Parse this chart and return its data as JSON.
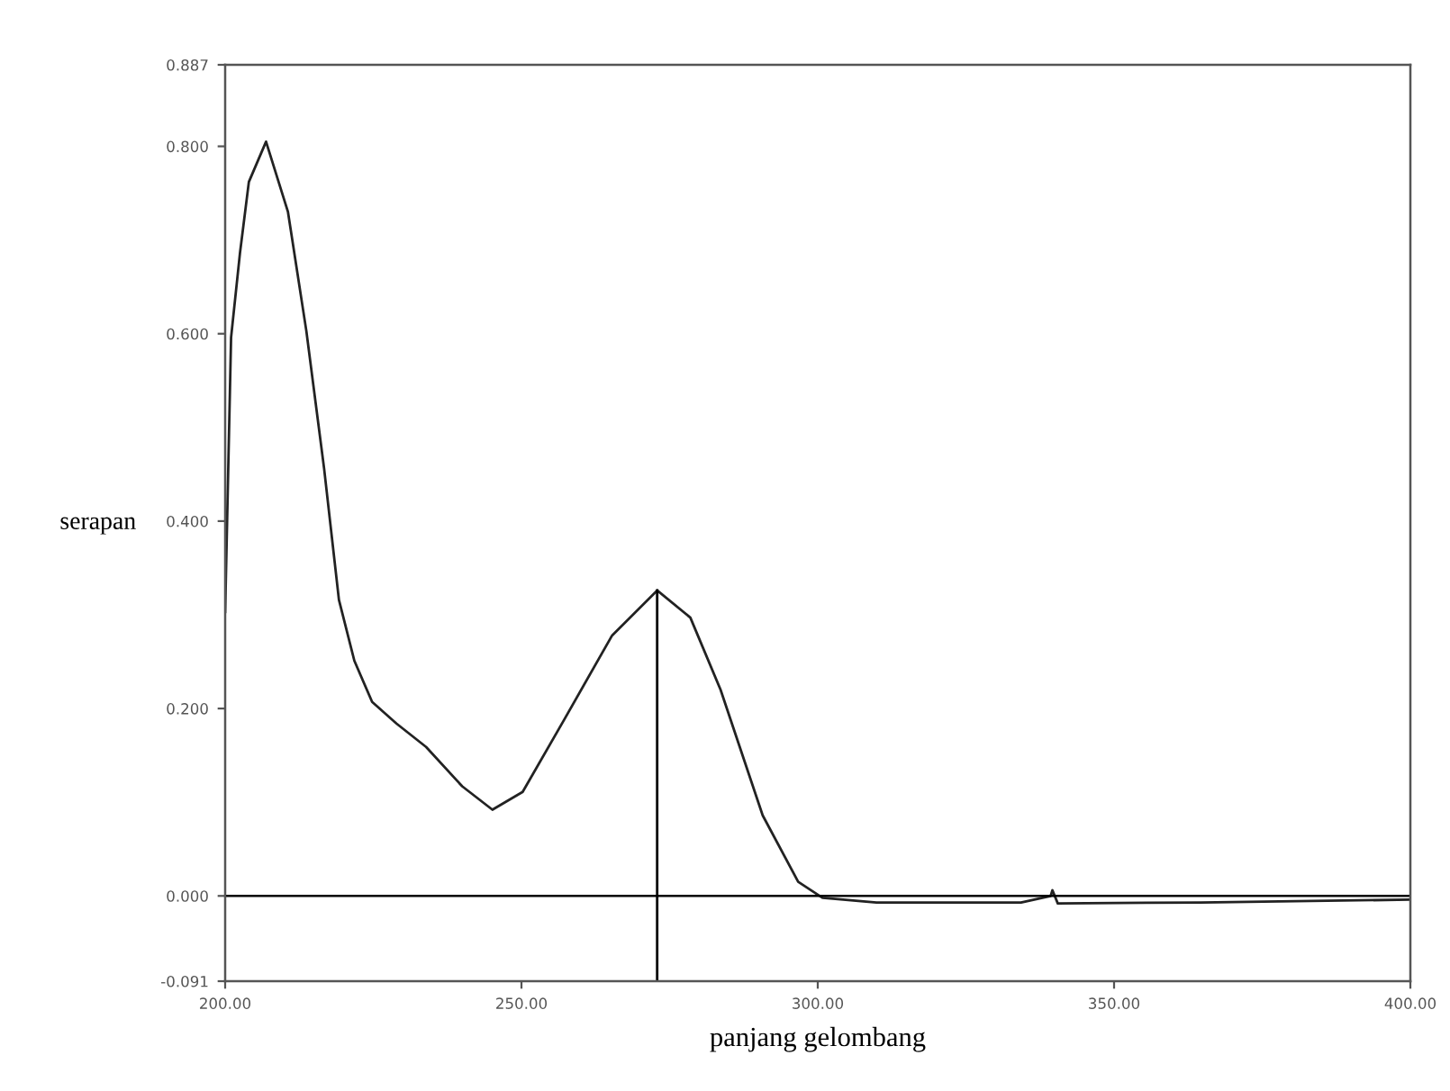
{
  "chart_data": {
    "type": "line",
    "xlabel": "panjang gelombang",
    "ylabel": "serapan",
    "xlim": [
      200,
      400
    ],
    "ylim": [
      -0.091,
      0.887
    ],
    "xticks": [
      {
        "value": 200,
        "label": "200.00"
      },
      {
        "value": 250,
        "label": "250.00"
      },
      {
        "value": 300,
        "label": "300.00"
      },
      {
        "value": 350,
        "label": "350.00"
      },
      {
        "value": 400,
        "label": "400.00"
      }
    ],
    "yticks": [
      {
        "value": -0.091,
        "label": "-0.091"
      },
      {
        "value": 0,
        "label": "0.000"
      },
      {
        "value": 0.2,
        "label": "0.200"
      },
      {
        "value": 0.4,
        "label": "0.400"
      },
      {
        "value": 0.6,
        "label": "0.600"
      },
      {
        "value": 0.8,
        "label": "0.800"
      },
      {
        "value": 0.887,
        "label": "0.887"
      }
    ],
    "grid": false,
    "legend": false,
    "marker": "none",
    "line_style": "solid",
    "ref_lines": [
      {
        "axis": "y",
        "value": 0,
        "color": "#000000"
      }
    ],
    "series": [
      {
        "color": "#222222",
        "x": [
          200.0,
          201.0,
          202.5,
          204.0,
          206.9,
          210.6,
          213.7,
          216.7,
          219.2,
          221.8,
          224.8,
          228.9,
          233.9,
          240.0,
          245.1,
          250.2,
          257.2,
          265.3,
          272.9,
          278.5,
          283.6,
          290.7,
          296.7,
          300.8,
          309.9,
          334.3,
          339.3,
          339.6,
          340.5,
          364.6,
          400.0
        ],
        "values": [
          0.303,
          0.596,
          0.686,
          0.762,
          0.805,
          0.73,
          0.603,
          0.456,
          0.316,
          0.251,
          0.207,
          0.184,
          0.159,
          0.117,
          0.092,
          0.111,
          0.188,
          0.278,
          0.326,
          0.297,
          0.22,
          0.086,
          0.015,
          -0.002,
          -0.007,
          -0.007,
          0.0,
          0.006,
          -0.008,
          -0.007,
          -0.004
        ]
      },
      {
        "color": "#000000",
        "x": [
          272.9,
          272.9
        ],
        "values": [
          -0.091,
          0.326
        ]
      }
    ]
  }
}
